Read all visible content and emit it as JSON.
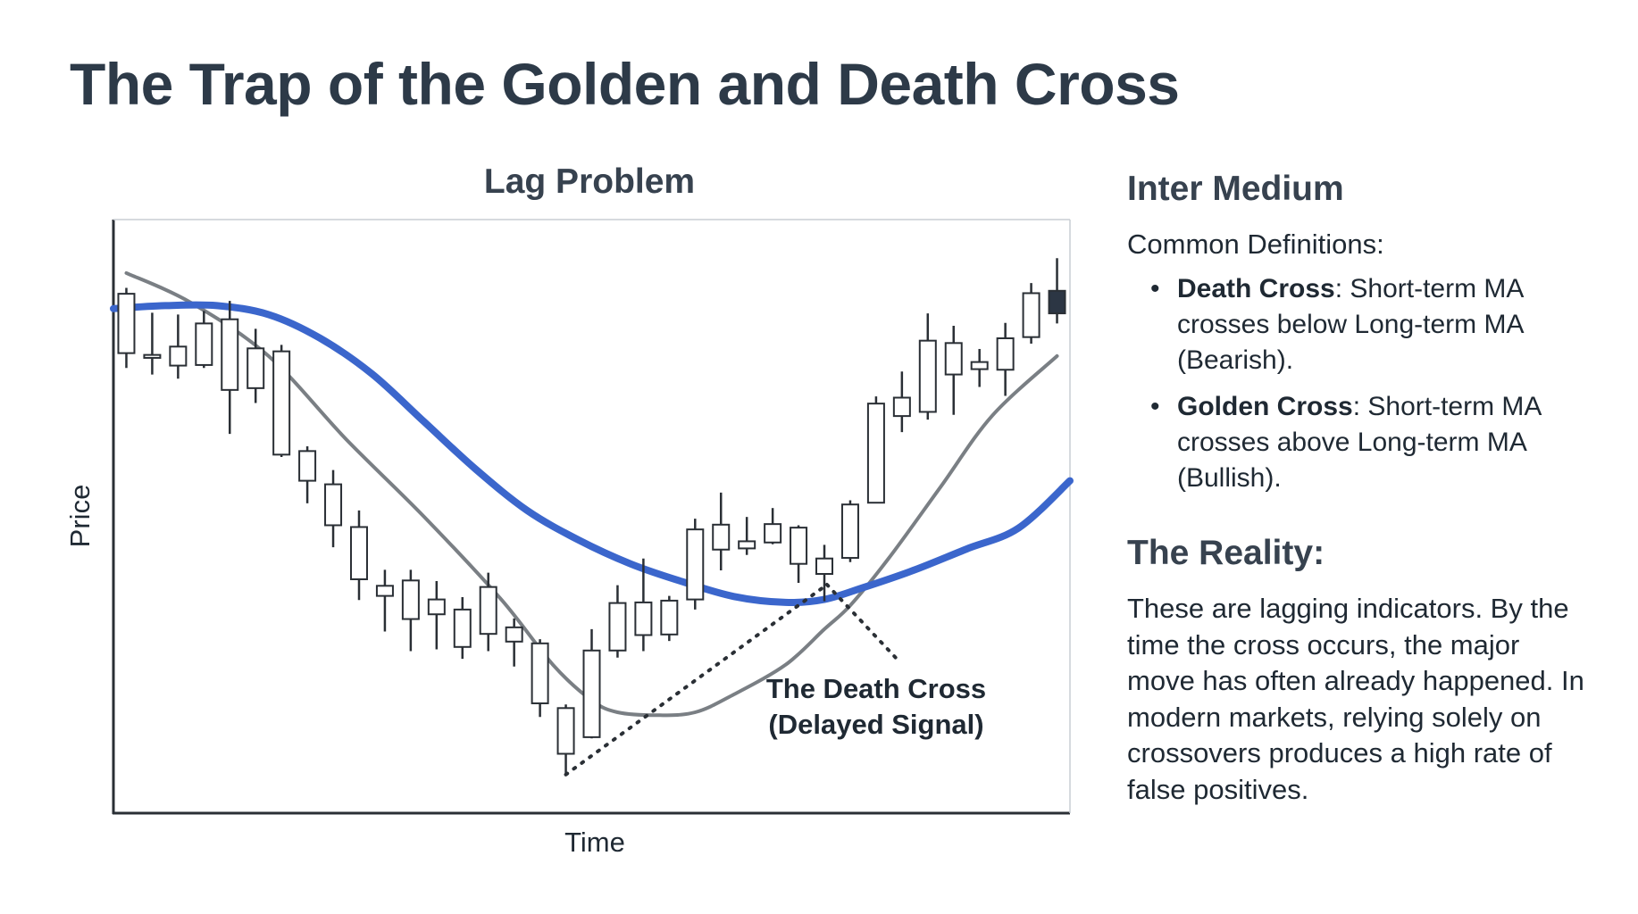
{
  "title": "The Trap of the Golden and Death Cross",
  "chart_data": {
    "type": "candlestick",
    "title": "Lag Problem",
    "xlabel": "Time",
    "ylabel": "Price",
    "ylim": [
      0,
      100
    ],
    "xlim": [
      0,
      37
    ],
    "grid": false,
    "candles": [
      {
        "x": 0.5,
        "open": 77.5,
        "close": 87.5,
        "high": 88.5,
        "low": 75.0
      },
      {
        "x": 1.5,
        "open": 76.7,
        "close": 77.2,
        "high": 84.3,
        "low": 73.9
      },
      {
        "x": 2.5,
        "open": 75.4,
        "close": 78.6,
        "high": 84.0,
        "low": 73.2
      },
      {
        "x": 3.5,
        "open": 75.5,
        "close": 82.5,
        "high": 84.6,
        "low": 75.0
      },
      {
        "x": 4.5,
        "open": 71.3,
        "close": 83.2,
        "high": 86.3,
        "low": 63.9
      },
      {
        "x": 5.5,
        "open": 71.6,
        "close": 78.3,
        "high": 81.6,
        "low": 69.1
      },
      {
        "x": 6.5,
        "open": 60.4,
        "close": 77.8,
        "high": 78.9,
        "low": 60.0
      },
      {
        "x": 7.5,
        "open": 56.0,
        "close": 61.0,
        "high": 61.8,
        "low": 52.2
      },
      {
        "x": 8.5,
        "open": 48.5,
        "close": 55.4,
        "high": 57.8,
        "low": 44.8
      },
      {
        "x": 9.5,
        "open": 39.4,
        "close": 48.2,
        "high": 51.0,
        "low": 35.9
      },
      {
        "x": 10.5,
        "open": 36.6,
        "close": 38.3,
        "high": 41.0,
        "low": 30.6
      },
      {
        "x": 11.5,
        "open": 32.7,
        "close": 39.2,
        "high": 41.0,
        "low": 27.3
      },
      {
        "x": 12.5,
        "open": 33.5,
        "close": 36.0,
        "high": 39.1,
        "low": 27.6
      },
      {
        "x": 13.5,
        "open": 28.0,
        "close": 34.3,
        "high": 36.4,
        "low": 26.0
      },
      {
        "x": 14.5,
        "open": 30.2,
        "close": 38.1,
        "high": 40.5,
        "low": 27.3
      },
      {
        "x": 15.5,
        "open": 28.9,
        "close": 31.3,
        "high": 32.8,
        "low": 24.7
      },
      {
        "x": 16.5,
        "open": 18.5,
        "close": 28.6,
        "high": 29.3,
        "low": 16.2
      },
      {
        "x": 17.5,
        "open": 10.0,
        "close": 17.7,
        "high": 18.3,
        "low": 6.5
      },
      {
        "x": 18.5,
        "open": 12.8,
        "close": 27.4,
        "high": 31.0,
        "low": 12.6
      },
      {
        "x": 19.5,
        "open": 27.4,
        "close": 35.4,
        "high": 38.4,
        "low": 26.2
      },
      {
        "x": 20.5,
        "open": 30.0,
        "close": 35.5,
        "high": 42.9,
        "low": 27.3
      },
      {
        "x": 21.5,
        "open": 30.1,
        "close": 35.8,
        "high": 36.6,
        "low": 29.0
      },
      {
        "x": 22.5,
        "open": 36.0,
        "close": 47.8,
        "high": 49.6,
        "low": 34.3
      },
      {
        "x": 23.5,
        "open": 44.4,
        "close": 48.6,
        "high": 54.0,
        "low": 40.9
      },
      {
        "x": 24.5,
        "open": 44.6,
        "close": 45.8,
        "high": 49.9,
        "low": 43.5
      },
      {
        "x": 25.5,
        "open": 45.6,
        "close": 48.7,
        "high": 51.4,
        "low": 45.3
      },
      {
        "x": 26.5,
        "open": 42.0,
        "close": 48.1,
        "high": 48.5,
        "low": 38.8
      },
      {
        "x": 27.5,
        "open": 40.3,
        "close": 42.9,
        "high": 45.2,
        "low": 35.7
      },
      {
        "x": 28.5,
        "open": 43.0,
        "close": 52.0,
        "high": 52.7,
        "low": 42.3
      },
      {
        "x": 29.5,
        "open": 52.3,
        "close": 69.0,
        "high": 70.2,
        "low": 52.3
      },
      {
        "x": 30.5,
        "open": 66.9,
        "close": 70.0,
        "high": 74.4,
        "low": 64.2
      },
      {
        "x": 31.5,
        "open": 67.6,
        "close": 79.6,
        "high": 84.2,
        "low": 66.3
      },
      {
        "x": 32.5,
        "open": 73.9,
        "close": 79.2,
        "high": 82.1,
        "low": 67.1
      },
      {
        "x": 33.5,
        "open": 74.8,
        "close": 76.0,
        "high": 78.2,
        "low": 71.8
      },
      {
        "x": 34.5,
        "open": 74.7,
        "close": 80.0,
        "high": 82.6,
        "low": 70.3
      },
      {
        "x": 35.5,
        "open": 80.2,
        "close": 87.6,
        "high": 89.3,
        "low": 79.1
      },
      {
        "x": 36.5,
        "open": 88.0,
        "close": 84.2,
        "high": 93.5,
        "low": 82.5
      }
    ],
    "series": [
      {
        "name": "Short-term MA",
        "color": "#7a7f84",
        "x": [
          0.5,
          3,
          6,
          9,
          12,
          15,
          17,
          18.5,
          19.5,
          21,
          22.5,
          24,
          26,
          27.5,
          28.5,
          30,
          32,
          34,
          36.5
        ],
        "y": [
          91,
          86,
          77,
          63,
          50,
          36,
          25,
          19,
          17,
          16.5,
          17,
          20,
          25,
          31,
          35,
          43,
          55,
          67,
          77
        ]
      },
      {
        "name": "Long-term MA",
        "color": "#3b66cc",
        "x": [
          0,
          2,
          4,
          6,
          8,
          10,
          12,
          14,
          16,
          18,
          20,
          22,
          24,
          26,
          27.5,
          29,
          31,
          33,
          35,
          37
        ],
        "y": [
          85,
          85.5,
          85.5,
          84,
          80,
          74,
          66,
          58,
          51,
          46,
          42,
          39,
          36.5,
          35.5,
          36,
          38,
          41,
          44.5,
          48,
          56
        ]
      }
    ],
    "annotations": [
      {
        "text_line1": "The Death Cross",
        "text_line2": "(Delayed Signal)",
        "points_to_x": 27.6,
        "points_to_y": 38.5,
        "dotted_from_x": 17.5,
        "dotted_from_y": 6.5,
        "dotted_to_x": 30.3,
        "dotted_to_y": 26.0
      }
    ]
  },
  "sidebar": {
    "heading": "Inter Medium",
    "definitions_heading": "Common Definitions:",
    "definitions": [
      {
        "term": "Death Cross",
        "text": ": Short-term MA crosses below Long-term MA (Bearish)."
      },
      {
        "term": "Golden Cross",
        "text": ": Short-term MA crosses above Long-term MA (Bullish)."
      }
    ],
    "reality_heading": "The Reality:",
    "reality_text": "These are lagging indicators. By the time the cross occurs, the major move has often already happened. In modern markets, relying solely on crossovers produces a high rate of false positives."
  }
}
